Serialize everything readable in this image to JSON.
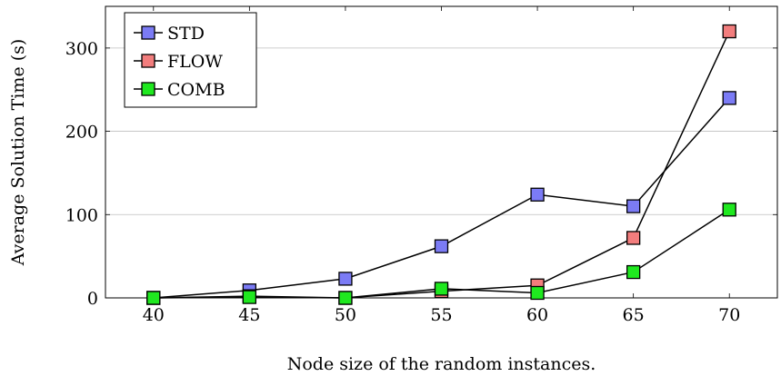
{
  "chart_data": {
    "type": "line",
    "x": [
      40,
      45,
      50,
      55,
      60,
      65,
      70
    ],
    "series": [
      {
        "name": "STD",
        "color": "#7b7bf5",
        "values": [
          0,
          9,
          23,
          62,
          124,
          110,
          240
        ]
      },
      {
        "name": "FLOW",
        "color": "#f27d7d",
        "values": [
          0,
          2,
          0,
          8,
          15,
          72,
          320
        ]
      },
      {
        "name": "COMB",
        "color": "#1fe81f",
        "values": [
          0,
          1,
          0,
          11,
          6,
          31,
          106
        ]
      }
    ],
    "xlabel": "Node size of the random instances.",
    "ylabel": "Average Solution Time (s)",
    "xticks": [
      40,
      45,
      50,
      55,
      60,
      65,
      70
    ],
    "yticks": [
      0,
      100,
      200,
      300
    ],
    "xlim": [
      37.5,
      72.5
    ],
    "ylim": [
      0,
      350
    ],
    "grid": "horizontal",
    "legend_position": "top-left",
    "marker": "square"
  }
}
